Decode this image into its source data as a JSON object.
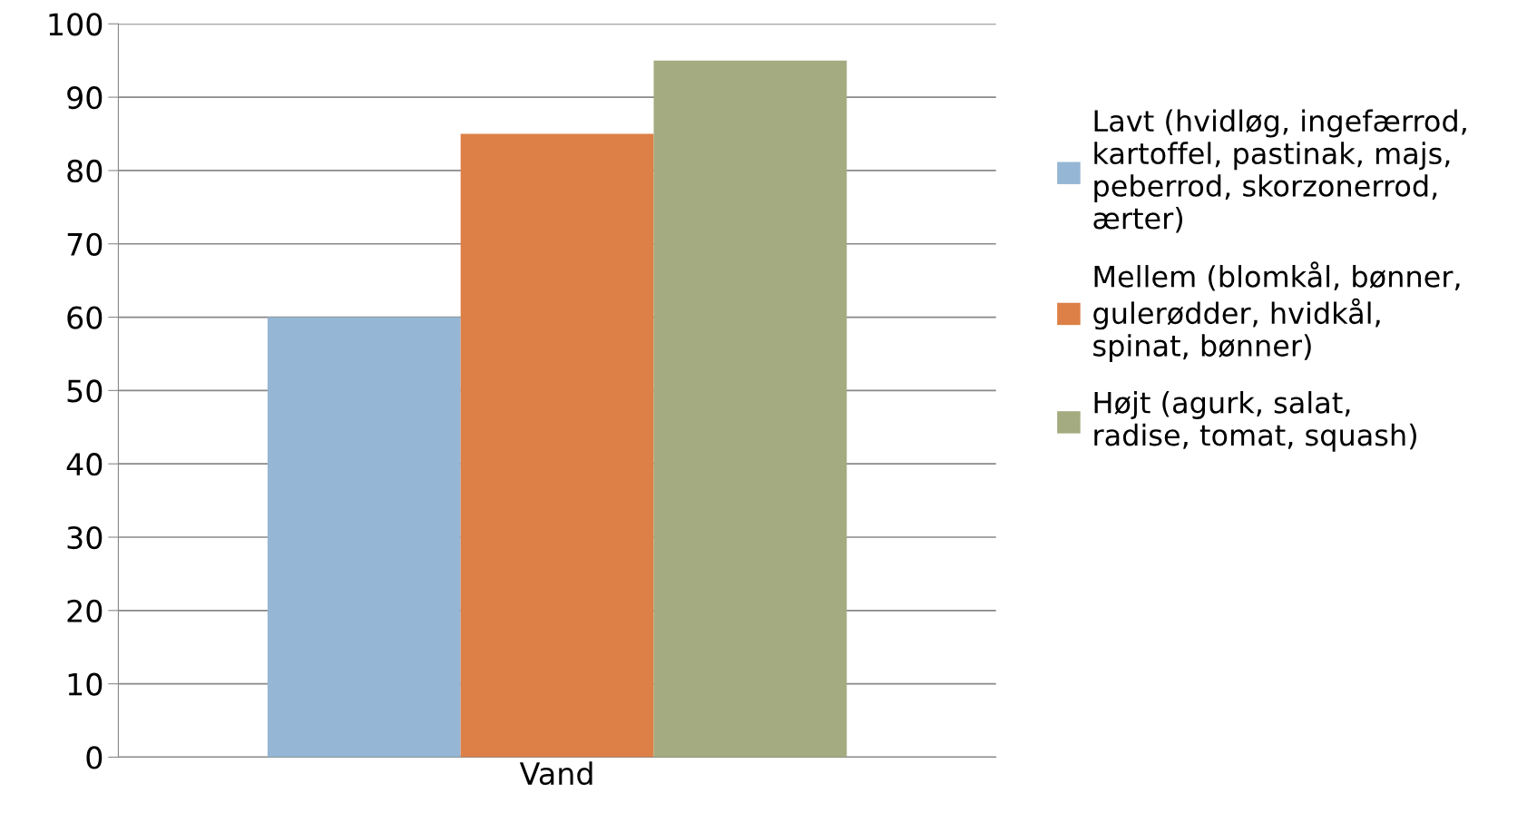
{
  "chart_data": {
    "type": "bar",
    "categories": [
      "Vand"
    ],
    "series": [
      {
        "name": "Lavt (hvidløg, ingefærrod, kartoffel, pastinak, majs, peberrod, skorzonerrod, ærter)",
        "color": "#95b6d4",
        "values": [
          60
        ]
      },
      {
        "name": "Mellem (blomkål, bønner, gulerødder, hvidkål, spinat, bønner)",
        "color": "#dd8047",
        "values": [
          85
        ]
      },
      {
        "name": "Højt (agurk, salat, radise, tomat, squash)",
        "color": "#a5ab80",
        "values": [
          95
        ]
      }
    ],
    "ylim": [
      0,
      100
    ],
    "yticks": [
      0,
      10,
      20,
      30,
      40,
      50,
      60,
      70,
      80,
      90,
      100
    ],
    "grid": "y",
    "legend": "right"
  }
}
